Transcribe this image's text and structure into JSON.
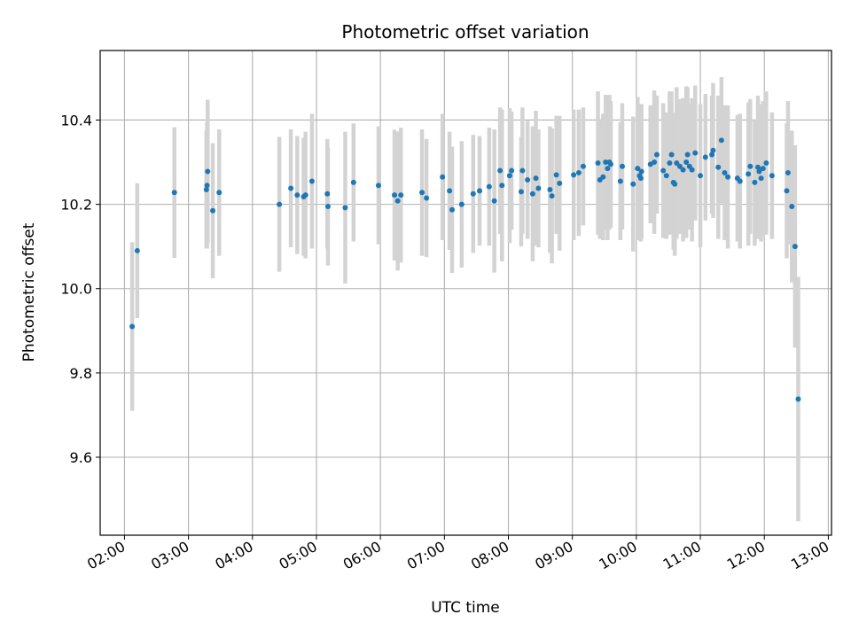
{
  "chart_data": {
    "type": "scatter",
    "title": "Photometric offset variation",
    "xlabel": "UTC time",
    "ylabel": "Photometric offset",
    "x_tick_labels": [
      "02:00",
      "03:00",
      "04:00",
      "05:00",
      "06:00",
      "07:00",
      "08:00",
      "09:00",
      "10:00",
      "11:00",
      "12:00",
      "13:00"
    ],
    "x_tick_hours": [
      2,
      3,
      4,
      5,
      6,
      7,
      8,
      9,
      10,
      11,
      12,
      13
    ],
    "y_tick_labels": [
      "9.6",
      "9.8",
      "10.0",
      "10.2",
      "10.4"
    ],
    "y_tick_values": [
      9.6,
      9.8,
      10.0,
      10.2,
      10.4
    ],
    "xlim_hours": [
      1.62,
      13.05
    ],
    "ylim": [
      9.415,
      10.565
    ],
    "grid": true,
    "colors": {
      "point": "#1f77b4",
      "errorbar": "#d3d3d3",
      "grid": "#b0b0b0"
    },
    "points_hours": [
      [
        2.12,
        9.91,
        0.2
      ],
      [
        2.2,
        10.09,
        0.16
      ],
      [
        2.78,
        10.228,
        0.155
      ],
      [
        3.28,
        10.235,
        0.14
      ],
      [
        3.29,
        10.245,
        0.15
      ],
      [
        3.3,
        10.278,
        0.17
      ],
      [
        3.38,
        10.185,
        0.16
      ],
      [
        3.48,
        10.228,
        0.15
      ],
      [
        4.42,
        10.2,
        0.16
      ],
      [
        4.6,
        10.238,
        0.14
      ],
      [
        4.7,
        10.222,
        0.14
      ],
      [
        4.8,
        10.218,
        0.14
      ],
      [
        4.83,
        10.222,
        0.15
      ],
      [
        4.93,
        10.255,
        0.16
      ],
      [
        5.17,
        10.225,
        0.13
      ],
      [
        5.18,
        10.195,
        0.14
      ],
      [
        5.45,
        10.192,
        0.18
      ],
      [
        5.58,
        10.252,
        0.14
      ],
      [
        5.97,
        10.245,
        0.14
      ],
      [
        6.22,
        10.222,
        0.155
      ],
      [
        6.27,
        10.208,
        0.165
      ],
      [
        6.32,
        10.222,
        0.16
      ],
      [
        6.65,
        10.228,
        0.15
      ],
      [
        6.72,
        10.215,
        0.14
      ],
      [
        6.97,
        10.265,
        0.15
      ],
      [
        7.08,
        10.232,
        0.14
      ],
      [
        7.12,
        10.187,
        0.15
      ],
      [
        7.27,
        10.2,
        0.15
      ],
      [
        7.45,
        10.225,
        0.14
      ],
      [
        7.55,
        10.232,
        0.13
      ],
      [
        7.7,
        10.242,
        0.14
      ],
      [
        7.78,
        10.208,
        0.17
      ],
      [
        7.87,
        10.28,
        0.15
      ],
      [
        7.9,
        10.245,
        0.18
      ],
      [
        8.02,
        10.268,
        0.16
      ],
      [
        8.05,
        10.28,
        0.14
      ],
      [
        8.2,
        10.23,
        0.13
      ],
      [
        8.22,
        10.28,
        0.15
      ],
      [
        8.3,
        10.258,
        0.14
      ],
      [
        8.38,
        10.225,
        0.16
      ],
      [
        8.43,
        10.262,
        0.16
      ],
      [
        8.47,
        10.238,
        0.14
      ],
      [
        8.65,
        10.235,
        0.15
      ],
      [
        8.68,
        10.22,
        0.16
      ],
      [
        8.75,
        10.27,
        0.14
      ],
      [
        8.8,
        10.25,
        0.16
      ],
      [
        9.02,
        10.27,
        0.155
      ],
      [
        9.1,
        10.275,
        0.15
      ],
      [
        9.17,
        10.29,
        0.14
      ],
      [
        9.4,
        10.298,
        0.17
      ],
      [
        9.43,
        10.258,
        0.14
      ],
      [
        9.48,
        10.265,
        0.15
      ],
      [
        9.52,
        10.3,
        0.16
      ],
      [
        9.55,
        10.285,
        0.17
      ],
      [
        9.58,
        10.3,
        0.16
      ],
      [
        9.6,
        10.295,
        0.15
      ],
      [
        9.75,
        10.255,
        0.14
      ],
      [
        9.78,
        10.29,
        0.15
      ],
      [
        9.95,
        10.248,
        0.16
      ],
      [
        10.02,
        10.285,
        0.17
      ],
      [
        10.05,
        10.268,
        0.15
      ],
      [
        10.07,
        10.262,
        0.15
      ],
      [
        10.08,
        10.278,
        0.16
      ],
      [
        10.22,
        10.295,
        0.14
      ],
      [
        10.28,
        10.3,
        0.17
      ],
      [
        10.32,
        10.318,
        0.14
      ],
      [
        10.42,
        10.28,
        0.16
      ],
      [
        10.47,
        10.268,
        0.15
      ],
      [
        10.52,
        10.298,
        0.17
      ],
      [
        10.55,
        10.318,
        0.15
      ],
      [
        10.58,
        10.252,
        0.16
      ],
      [
        10.6,
        10.248,
        0.17
      ],
      [
        10.63,
        10.298,
        0.18
      ],
      [
        10.68,
        10.29,
        0.16
      ],
      [
        10.73,
        10.282,
        0.17
      ],
      [
        10.78,
        10.3,
        0.18
      ],
      [
        10.8,
        10.318,
        0.16
      ],
      [
        10.83,
        10.29,
        0.15
      ],
      [
        10.87,
        10.282,
        0.17
      ],
      [
        10.92,
        10.322,
        0.16
      ],
      [
        11.0,
        10.268,
        0.17
      ],
      [
        11.08,
        10.312,
        0.15
      ],
      [
        11.18,
        10.318,
        0.14
      ],
      [
        11.2,
        10.328,
        0.16
      ],
      [
        11.28,
        10.288,
        0.17
      ],
      [
        11.33,
        10.352,
        0.15
      ],
      [
        11.38,
        10.275,
        0.16
      ],
      [
        11.43,
        10.265,
        0.17
      ],
      [
        11.58,
        10.262,
        0.15
      ],
      [
        11.62,
        10.255,
        0.16
      ],
      [
        11.75,
        10.272,
        0.17
      ],
      [
        11.78,
        10.29,
        0.16
      ],
      [
        11.85,
        10.252,
        0.15
      ],
      [
        11.9,
        10.288,
        0.17
      ],
      [
        11.92,
        10.278,
        0.16
      ],
      [
        11.95,
        10.262,
        0.15
      ],
      [
        11.98,
        10.285,
        0.16
      ],
      [
        12.03,
        10.298,
        0.17
      ],
      [
        12.12,
        10.268,
        0.15
      ],
      [
        12.35,
        10.232,
        0.16
      ],
      [
        12.37,
        10.275,
        0.17
      ],
      [
        12.43,
        10.195,
        0.18
      ],
      [
        12.48,
        10.1,
        0.24
      ],
      [
        12.53,
        9.738,
        0.29
      ]
    ]
  }
}
